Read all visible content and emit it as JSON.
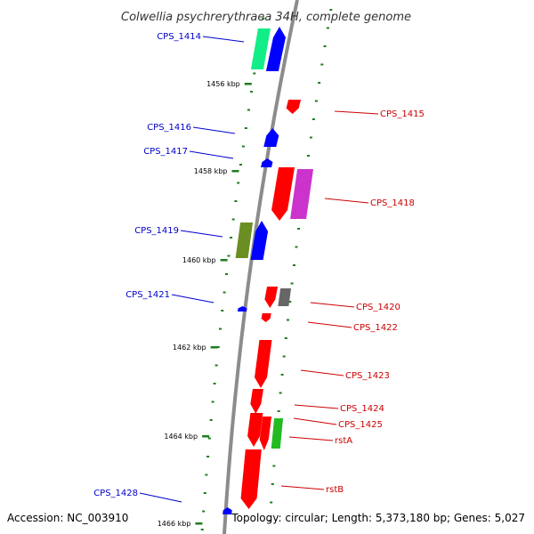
{
  "title": "Colwellia psychrerythraea 34H, complete genome",
  "footer": {
    "accession": "Accession: NC_003910",
    "topology": "Topology: circular; Length: 5,373,180 bp; Genes: 5,027"
  },
  "colors": {
    "backbone": "#8c8c8c",
    "tick": "#1e7d1e",
    "forward_label": "#cc0000",
    "reverse_label": "#0000cc",
    "red": "#ff0000",
    "blue": "#0000ff",
    "green": "#11ee88",
    "olive": "#6b8e23",
    "gray": "#666666",
    "orange": "#ff8800",
    "bright_green": "#22bb22",
    "magenta": "#cc33cc",
    "khaki": "#cccc99"
  },
  "kbp_ticks": [
    {
      "label": "1456 kbp",
      "kbp": 1456
    },
    {
      "label": "1458 kbp",
      "kbp": 1458
    },
    {
      "label": "1460 kbp",
      "kbp": 1460
    },
    {
      "label": "1462 kbp",
      "kbp": 1462
    },
    {
      "label": "1464 kbp",
      "kbp": 1464
    },
    {
      "label": "1466 kbp",
      "kbp": 1466
    }
  ],
  "genes": [
    {
      "label": "CPS_1414",
      "strand": "reverse",
      "color": "blue",
      "extra_color": "green"
    },
    {
      "label": "CPS_1415",
      "strand": "forward",
      "color": "red"
    },
    {
      "label": "CPS_1416",
      "strand": "reverse",
      "color": "blue"
    },
    {
      "label": "CPS_1417",
      "strand": "reverse",
      "color": "blue"
    },
    {
      "label": "CPS_1418",
      "strand": "forward",
      "color": "red",
      "extra_color": "magenta"
    },
    {
      "label": "CPS_1419",
      "strand": "reverse",
      "color": "blue",
      "extra_color": "olive"
    },
    {
      "label": "CPS_1420",
      "strand": "forward",
      "color": "red",
      "extra_color": "gray"
    },
    {
      "label": "CPS_1421",
      "strand": "reverse",
      "color": "blue"
    },
    {
      "label": "CPS_1422",
      "strand": "forward",
      "color": "red"
    },
    {
      "label": "CPS_1423",
      "strand": "forward",
      "color": "red"
    },
    {
      "label": "CPS_1424",
      "strand": "forward",
      "color": "red"
    },
    {
      "label": "CPS_1425",
      "strand": "forward",
      "color": "red"
    },
    {
      "label": "rstA",
      "strand": "forward",
      "color": "red",
      "extra_color": "bright_green"
    },
    {
      "label": "rstB",
      "strand": "forward",
      "color": "red"
    },
    {
      "label": "CPS_1428",
      "strand": "reverse",
      "color": "blue"
    }
  ]
}
